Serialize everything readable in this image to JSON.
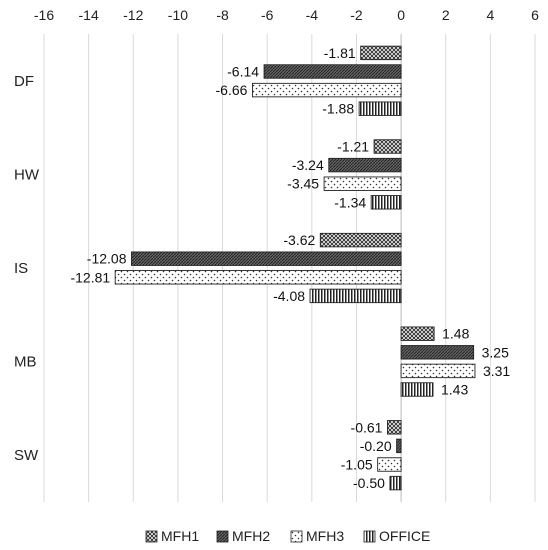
{
  "chart_data": {
    "type": "bar",
    "orientation": "horizontal",
    "categories": [
      "DF",
      "HW",
      "IS",
      "MB",
      "SW"
    ],
    "series": [
      {
        "name": "MFH1",
        "values": [
          -1.81,
          -1.21,
          -3.62,
          1.48,
          -0.61
        ],
        "pattern": "crosshatch"
      },
      {
        "name": "MFH2",
        "values": [
          -6.14,
          -3.24,
          -12.08,
          3.25,
          -0.2
        ],
        "pattern": "dense-diagonal"
      },
      {
        "name": "MFH3",
        "values": [
          -6.66,
          -3.45,
          -12.81,
          3.31,
          -1.05
        ],
        "pattern": "dots"
      },
      {
        "name": "OFFICE",
        "values": [
          -1.88,
          -1.34,
          -4.08,
          1.43,
          -0.5
        ],
        "pattern": "vertical-stripes"
      }
    ],
    "data_labels": [
      [
        "-1.81",
        "-6.14",
        "-6.66",
        "-1.88"
      ],
      [
        "-1.21",
        "-3.24",
        "-3.45",
        "-1.34"
      ],
      [
        "-3.62",
        "-12.08",
        "-12.81",
        "-4.08"
      ],
      [
        "1.48",
        "3.25",
        "3.31",
        "1.43"
      ],
      [
        "-0.61",
        "-0.20",
        "-1.05",
        "-0.50"
      ]
    ],
    "x_ticks": [
      "-16",
      "-14",
      "-12",
      "-10",
      "-8",
      "-6",
      "-4",
      "-2",
      "0",
      "2",
      "4",
      "6"
    ],
    "xlim": [
      -16,
      6
    ],
    "x_axis_position": "top",
    "grid": "vertical",
    "legend": "bottom",
    "title": "",
    "xlabel": "",
    "ylabel": ""
  }
}
